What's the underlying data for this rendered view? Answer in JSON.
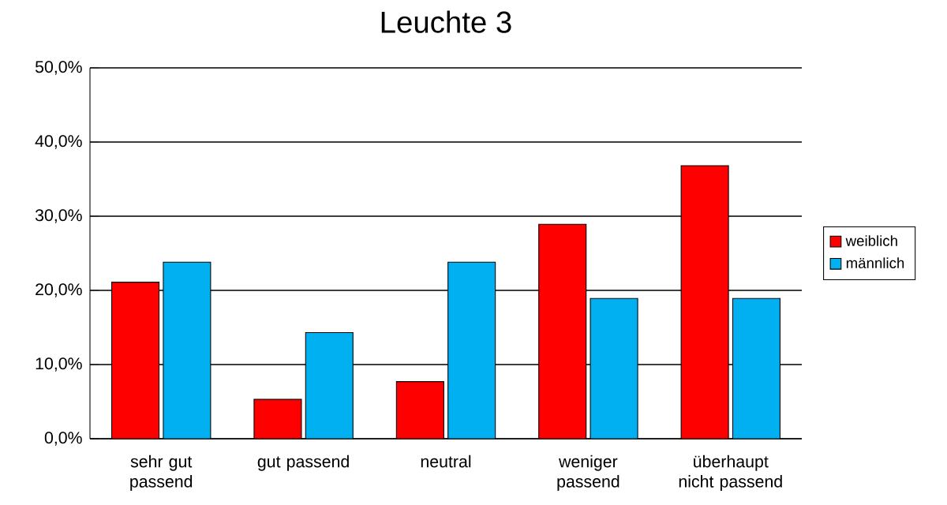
{
  "chart_data": {
    "type": "bar",
    "title": "Leuchte 3",
    "categories": [
      "sehr gut passend",
      "gut passend",
      "neutral",
      "weniger passend",
      "überhaupt nicht passend"
    ],
    "series": [
      {
        "name": "weiblich",
        "color": "#ff0000",
        "values": [
          21.1,
          5.3,
          7.7,
          28.9,
          36.8
        ]
      },
      {
        "name": "männlich",
        "color": "#00b0f0",
        "values": [
          23.8,
          14.3,
          23.8,
          18.9,
          18.9
        ]
      }
    ],
    "ylim": [
      0,
      50
    ],
    "yticks": [
      {
        "value": 0,
        "label": "0,0%"
      },
      {
        "value": 10,
        "label": "10,0%"
      },
      {
        "value": 20,
        "label": "20,0%"
      },
      {
        "value": 30,
        "label": "30,0%"
      },
      {
        "value": 40,
        "label": "40,0%"
      },
      {
        "value": 50,
        "label": "50,0%"
      }
    ],
    "grid": "y",
    "legend": "right"
  }
}
